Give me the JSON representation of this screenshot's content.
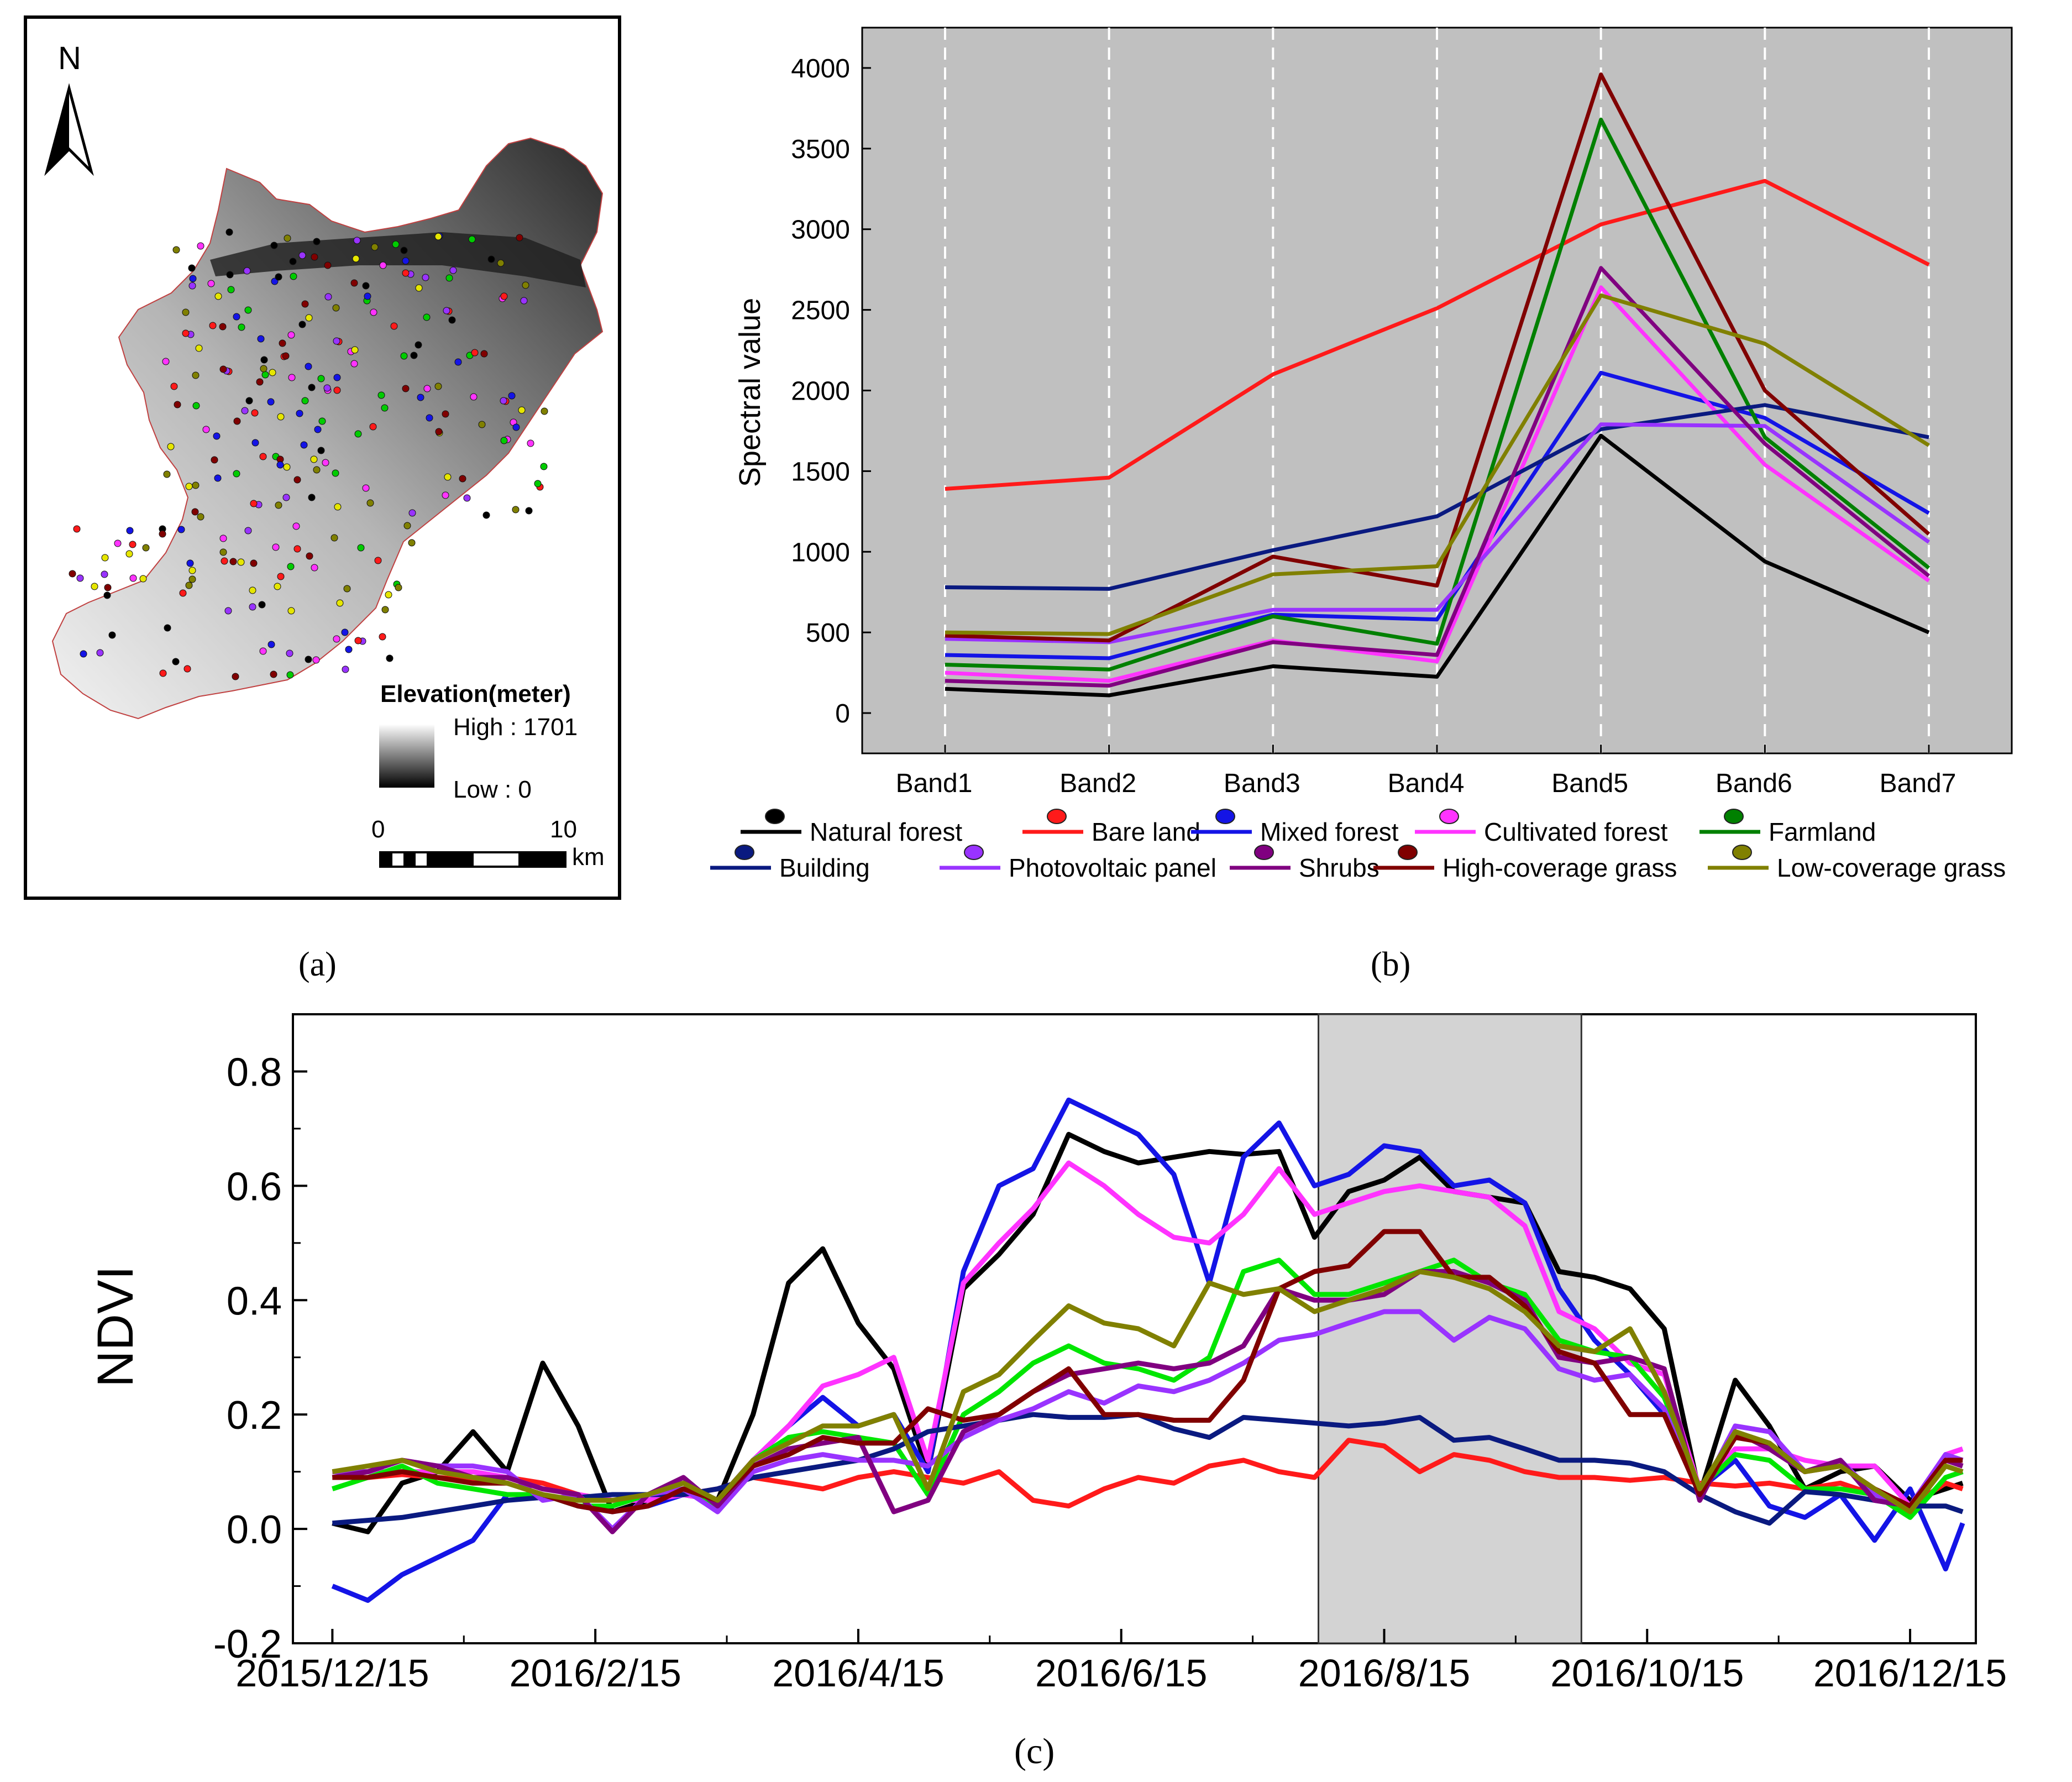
{
  "colors": {
    "natural_forest": "#000000",
    "bare_land": "#ff1a1a",
    "mixed_forest": "#1414e6",
    "cultivated_forest": "#ff33ff",
    "farmland": "#008000",
    "farmland_c": "#00e600",
    "building": "#0a1a80",
    "photovoltaic_panel": "#9933ff",
    "shrubs": "#800080",
    "high_grass": "#800000",
    "low_grass": "#808000",
    "plot_bg": "#c0c0c0",
    "shade_bg": "#d3d3d3"
  },
  "panel_a": {
    "caption": "(a)",
    "north_label": "N",
    "legend_title": "Elevation(meter)",
    "high_label": "High : 1701",
    "low_label": "Low : 0",
    "scale_zero": "0",
    "scale_ten": "10",
    "scale_unit": "km"
  },
  "panel_b": {
    "caption": "(b)"
  },
  "panel_c": {
    "caption": "(c)"
  },
  "chart_data": [
    {
      "type": "line",
      "panel": "b",
      "title": "",
      "xlabel": "",
      "ylabel": "Spectral value",
      "categories": [
        "Band1",
        "Band2",
        "Band3",
        "Band4",
        "Band5",
        "Band6",
        "Band7"
      ],
      "ylim": [
        -250,
        4250
      ],
      "yticks": [
        0,
        500,
        1000,
        1500,
        2000,
        2500,
        3000,
        3500,
        4000
      ],
      "series": [
        {
          "name": "Natural forest",
          "color": "#000000",
          "values": [
            150,
            110,
            290,
            225,
            1720,
            940,
            500
          ]
        },
        {
          "name": "Bare land",
          "color": "#ff1a1a",
          "values": [
            1390,
            1460,
            2100,
            2510,
            3030,
            3300,
            2780
          ]
        },
        {
          "name": "Mixed forest",
          "color": "#1414e6",
          "values": [
            360,
            340,
            610,
            580,
            2110,
            1830,
            1240
          ]
        },
        {
          "name": "Cultivated forest",
          "color": "#ff33ff",
          "values": [
            250,
            200,
            450,
            320,
            2640,
            1540,
            820
          ]
        },
        {
          "name": "Farmland",
          "color": "#008000",
          "values": [
            300,
            270,
            600,
            430,
            3680,
            1710,
            900
          ]
        },
        {
          "name": "Building",
          "color": "#0a1a80",
          "values": [
            780,
            770,
            1010,
            1220,
            1760,
            1910,
            1710
          ]
        },
        {
          "name": "Photovoltaic panel",
          "color": "#9933ff",
          "values": [
            460,
            440,
            640,
            640,
            1790,
            1780,
            1060
          ]
        },
        {
          "name": "Shrubs",
          "color": "#800080",
          "values": [
            200,
            170,
            440,
            360,
            2760,
            1670,
            850
          ]
        },
        {
          "name": "High-coverage grass",
          "color": "#800000",
          "values": [
            480,
            450,
            970,
            790,
            3960,
            2000,
            1110
          ]
        },
        {
          "name": "Low-coverage grass",
          "color": "#808000",
          "values": [
            500,
            490,
            860,
            910,
            2590,
            2290,
            1660
          ]
        }
      ]
    },
    {
      "type": "line",
      "panel": "c",
      "title": "",
      "xlabel": "",
      "ylabel": "NDVI",
      "x_unit": "months since 2015/12/15",
      "xlim": [
        -0.3,
        12.5
      ],
      "ylim": [
        -0.2,
        0.9
      ],
      "yticks": [
        -0.2,
        0.0,
        0.2,
        0.4,
        0.6,
        0.8
      ],
      "ytick_labels": [
        "-0.2",
        "0.0",
        "0.2",
        "0.4",
        "0.6",
        "0.8"
      ],
      "xticks": [
        0,
        2,
        4,
        6,
        8,
        10,
        12
      ],
      "xtick_labels": [
        "2015/12/15",
        "2016/2/15",
        "2016/4/15",
        "2016/6/15",
        "2016/8/15",
        "2016/10/15",
        "2016/12/15"
      ],
      "shaded_range": [
        7.5,
        9.5
      ],
      "x": [
        0,
        0.27,
        0.53,
        0.8,
        1.07,
        1.33,
        1.6,
        1.87,
        2.13,
        2.4,
        2.67,
        2.93,
        3.2,
        3.47,
        3.73,
        4.0,
        4.27,
        4.53,
        4.8,
        5.07,
        5.33,
        5.6,
        5.87,
        6.13,
        6.4,
        6.67,
        6.93,
        7.2,
        7.47,
        7.73,
        8.0,
        8.27,
        8.53,
        8.8,
        9.07,
        9.33,
        9.6,
        9.87,
        10.13,
        10.4,
        10.67,
        10.93,
        11.2,
        11.47,
        11.73,
        12.0,
        12.27,
        12.4
      ],
      "series": [
        {
          "name": "Natural forest",
          "color": "#000000",
          "values": [
            0.01,
            -0.005,
            0.08,
            0.1,
            0.17,
            0.1,
            0.29,
            0.18,
            0.03,
            0.05,
            0.06,
            0.05,
            0.2,
            0.43,
            0.49,
            0.36,
            0.28,
            0.1,
            0.42,
            0.48,
            0.55,
            0.69,
            0.66,
            0.64,
            0.65,
            0.66,
            0.655,
            0.66,
            0.51,
            0.59,
            0.61,
            0.65,
            0.59,
            0.58,
            0.57,
            0.45,
            0.44,
            0.42,
            0.35,
            0.06,
            0.26,
            0.18,
            0.07,
            0.1,
            0.11,
            0.05,
            0.07,
            0.08
          ]
        },
        {
          "name": "Bare land",
          "color": "#ff1a1a",
          "values": [
            0.09,
            0.09,
            0.095,
            0.09,
            0.085,
            0.09,
            0.08,
            0.06,
            0.05,
            0.05,
            0.06,
            0.07,
            0.09,
            0.08,
            0.07,
            0.09,
            0.1,
            0.09,
            0.08,
            0.1,
            0.05,
            0.04,
            0.07,
            0.09,
            0.08,
            0.11,
            0.12,
            0.1,
            0.09,
            0.155,
            0.145,
            0.1,
            0.13,
            0.12,
            0.1,
            0.09,
            0.09,
            0.085,
            0.09,
            0.08,
            0.075,
            0.08,
            0.07,
            0.08,
            0.06,
            0.04,
            0.08,
            0.07
          ]
        },
        {
          "name": "Mixed forest",
          "color": "#1414e6",
          "values": [
            -0.1,
            -0.125,
            -0.08,
            -0.05,
            -0.02,
            0.06,
            0.06,
            0.04,
            0.03,
            0.04,
            0.06,
            0.05,
            0.12,
            0.18,
            0.23,
            0.18,
            0.2,
            0.1,
            0.45,
            0.6,
            0.63,
            0.75,
            0.72,
            0.69,
            0.62,
            0.43,
            0.65,
            0.71,
            0.6,
            0.62,
            0.67,
            0.66,
            0.6,
            0.61,
            0.57,
            0.42,
            0.33,
            0.27,
            0.2,
            0.07,
            0.12,
            0.04,
            0.02,
            0.06,
            -0.02,
            0.07,
            -0.07,
            0.01
          ]
        },
        {
          "name": "Cultivated forest",
          "color": "#ff33ff",
          "values": [
            0.1,
            0.1,
            0.1,
            0.1,
            0.1,
            0.09,
            0.07,
            0.06,
            0.05,
            0.05,
            0.06,
            0.05,
            0.12,
            0.18,
            0.25,
            0.27,
            0.3,
            0.12,
            0.43,
            0.5,
            0.56,
            0.64,
            0.6,
            0.55,
            0.51,
            0.5,
            0.55,
            0.63,
            0.55,
            0.57,
            0.59,
            0.6,
            0.59,
            0.58,
            0.53,
            0.38,
            0.35,
            0.29,
            0.27,
            0.07,
            0.14,
            0.14,
            0.12,
            0.11,
            0.11,
            0.04,
            0.13,
            0.14
          ]
        },
        {
          "name": "Farmland",
          "color": "#00e600",
          "values": [
            0.07,
            0.09,
            0.11,
            0.08,
            0.07,
            0.06,
            0.06,
            0.04,
            0.04,
            0.06,
            0.07,
            0.04,
            0.12,
            0.16,
            0.17,
            0.16,
            0.15,
            0.06,
            0.2,
            0.24,
            0.29,
            0.32,
            0.29,
            0.28,
            0.26,
            0.3,
            0.45,
            0.47,
            0.41,
            0.41,
            0.43,
            0.45,
            0.47,
            0.43,
            0.41,
            0.33,
            0.31,
            0.3,
            0.23,
            0.07,
            0.13,
            0.12,
            0.07,
            0.07,
            0.06,
            0.02,
            0.09,
            0.1
          ]
        },
        {
          "name": "Building",
          "color": "#0a1a80",
          "values": [
            0.01,
            0.015,
            0.02,
            0.03,
            0.04,
            0.05,
            0.055,
            0.055,
            0.06,
            0.06,
            0.06,
            0.07,
            0.09,
            0.1,
            0.11,
            0.12,
            0.14,
            0.17,
            0.18,
            0.19,
            0.2,
            0.195,
            0.195,
            0.2,
            0.175,
            0.16,
            0.195,
            0.19,
            0.185,
            0.18,
            0.185,
            0.195,
            0.155,
            0.16,
            0.14,
            0.12,
            0.12,
            0.115,
            0.1,
            0.06,
            0.03,
            0.01,
            0.065,
            0.06,
            0.05,
            0.04,
            0.04,
            0.03
          ]
        },
        {
          "name": "Photovoltaic panel",
          "color": "#9933ff",
          "values": [
            0.1,
            0.1,
            0.12,
            0.11,
            0.11,
            0.1,
            0.05,
            0.06,
            0.0,
            0.06,
            0.07,
            0.03,
            0.1,
            0.12,
            0.13,
            0.12,
            0.12,
            0.11,
            0.16,
            0.19,
            0.21,
            0.24,
            0.22,
            0.25,
            0.24,
            0.26,
            0.29,
            0.33,
            0.34,
            0.36,
            0.38,
            0.38,
            0.33,
            0.37,
            0.35,
            0.28,
            0.26,
            0.27,
            0.21,
            0.06,
            0.18,
            0.17,
            0.1,
            0.12,
            0.06,
            0.04,
            0.13,
            0.12
          ]
        },
        {
          "name": "Shrubs",
          "color": "#800080",
          "values": [
            0.09,
            0.1,
            0.12,
            0.11,
            0.09,
            0.09,
            0.07,
            0.06,
            -0.005,
            0.06,
            0.09,
            0.04,
            0.11,
            0.14,
            0.15,
            0.16,
            0.03,
            0.05,
            0.17,
            0.2,
            0.24,
            0.27,
            0.28,
            0.29,
            0.28,
            0.29,
            0.32,
            0.42,
            0.4,
            0.4,
            0.41,
            0.45,
            0.45,
            0.43,
            0.4,
            0.3,
            0.29,
            0.3,
            0.28,
            0.05,
            0.17,
            0.14,
            0.1,
            0.12,
            0.05,
            0.04,
            0.12,
            0.11
          ]
        },
        {
          "name": "High-coverage grass",
          "color": "#800000",
          "values": [
            0.09,
            0.09,
            0.1,
            0.09,
            0.08,
            0.08,
            0.06,
            0.04,
            0.03,
            0.04,
            0.07,
            0.05,
            0.11,
            0.13,
            0.16,
            0.15,
            0.15,
            0.21,
            0.19,
            0.2,
            0.24,
            0.28,
            0.2,
            0.2,
            0.19,
            0.19,
            0.26,
            0.42,
            0.45,
            0.46,
            0.52,
            0.52,
            0.44,
            0.44,
            0.39,
            0.31,
            0.29,
            0.2,
            0.2,
            0.06,
            0.16,
            0.15,
            0.1,
            0.11,
            0.07,
            0.04,
            0.12,
            0.12
          ]
        },
        {
          "name": "Low-coverage grass",
          "color": "#808000",
          "values": [
            0.1,
            0.11,
            0.12,
            0.1,
            0.09,
            0.08,
            0.06,
            0.05,
            0.05,
            0.06,
            0.08,
            0.05,
            0.12,
            0.15,
            0.18,
            0.18,
            0.2,
            0.07,
            0.24,
            0.27,
            0.33,
            0.39,
            0.36,
            0.35,
            0.32,
            0.43,
            0.41,
            0.42,
            0.38,
            0.4,
            0.42,
            0.45,
            0.44,
            0.42,
            0.38,
            0.32,
            0.31,
            0.35,
            0.24,
            0.07,
            0.17,
            0.15,
            0.1,
            0.11,
            0.07,
            0.03,
            0.11,
            0.1
          ]
        }
      ]
    }
  ]
}
